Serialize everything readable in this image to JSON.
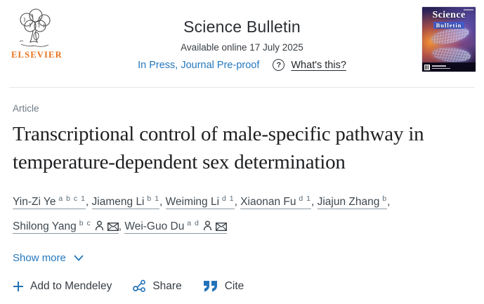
{
  "colors": {
    "link_blue": "#2478bd",
    "icon_blue": "#2272b8",
    "elsevier_orange": "#e9711c",
    "title_dark": "#1e1f21"
  },
  "header": {
    "publisher_logo_label": "ELSEVIER",
    "journal_title": "Science Bulletin",
    "available_online": "Available online 17 July 2025",
    "in_press_label": "In Press, Journal Pre-proof",
    "question_mark": "?",
    "whats_this_label": "What's this?",
    "cover": {
      "line1": "Science",
      "line2": "Bulletin"
    }
  },
  "article": {
    "type_label": "Article",
    "title": "Transcriptional control of male-specific pathway in temperature-dependent sex determination",
    "authors": [
      {
        "name": "Yin-Zi Ye",
        "sup": "a b c 1"
      },
      {
        "name": "Jiameng Li",
        "sup": "b 1"
      },
      {
        "name": "Weiming Li",
        "sup": "d 1"
      },
      {
        "name": "Xiaonan Fu",
        "sup": "d 1"
      },
      {
        "name": "Jiajun Zhang",
        "sup": "b",
        "break_after": true
      },
      {
        "name": "Shilong Yang",
        "sup": "b c",
        "has_profile_icons": true
      },
      {
        "name": "Wei-Guo Du",
        "sup": "a d",
        "has_profile_icons": true
      }
    ],
    "show_more_label": "Show more"
  },
  "actions": {
    "mendeley_label": "Add to Mendeley",
    "share_label": "Share",
    "cite_label": "Cite"
  }
}
